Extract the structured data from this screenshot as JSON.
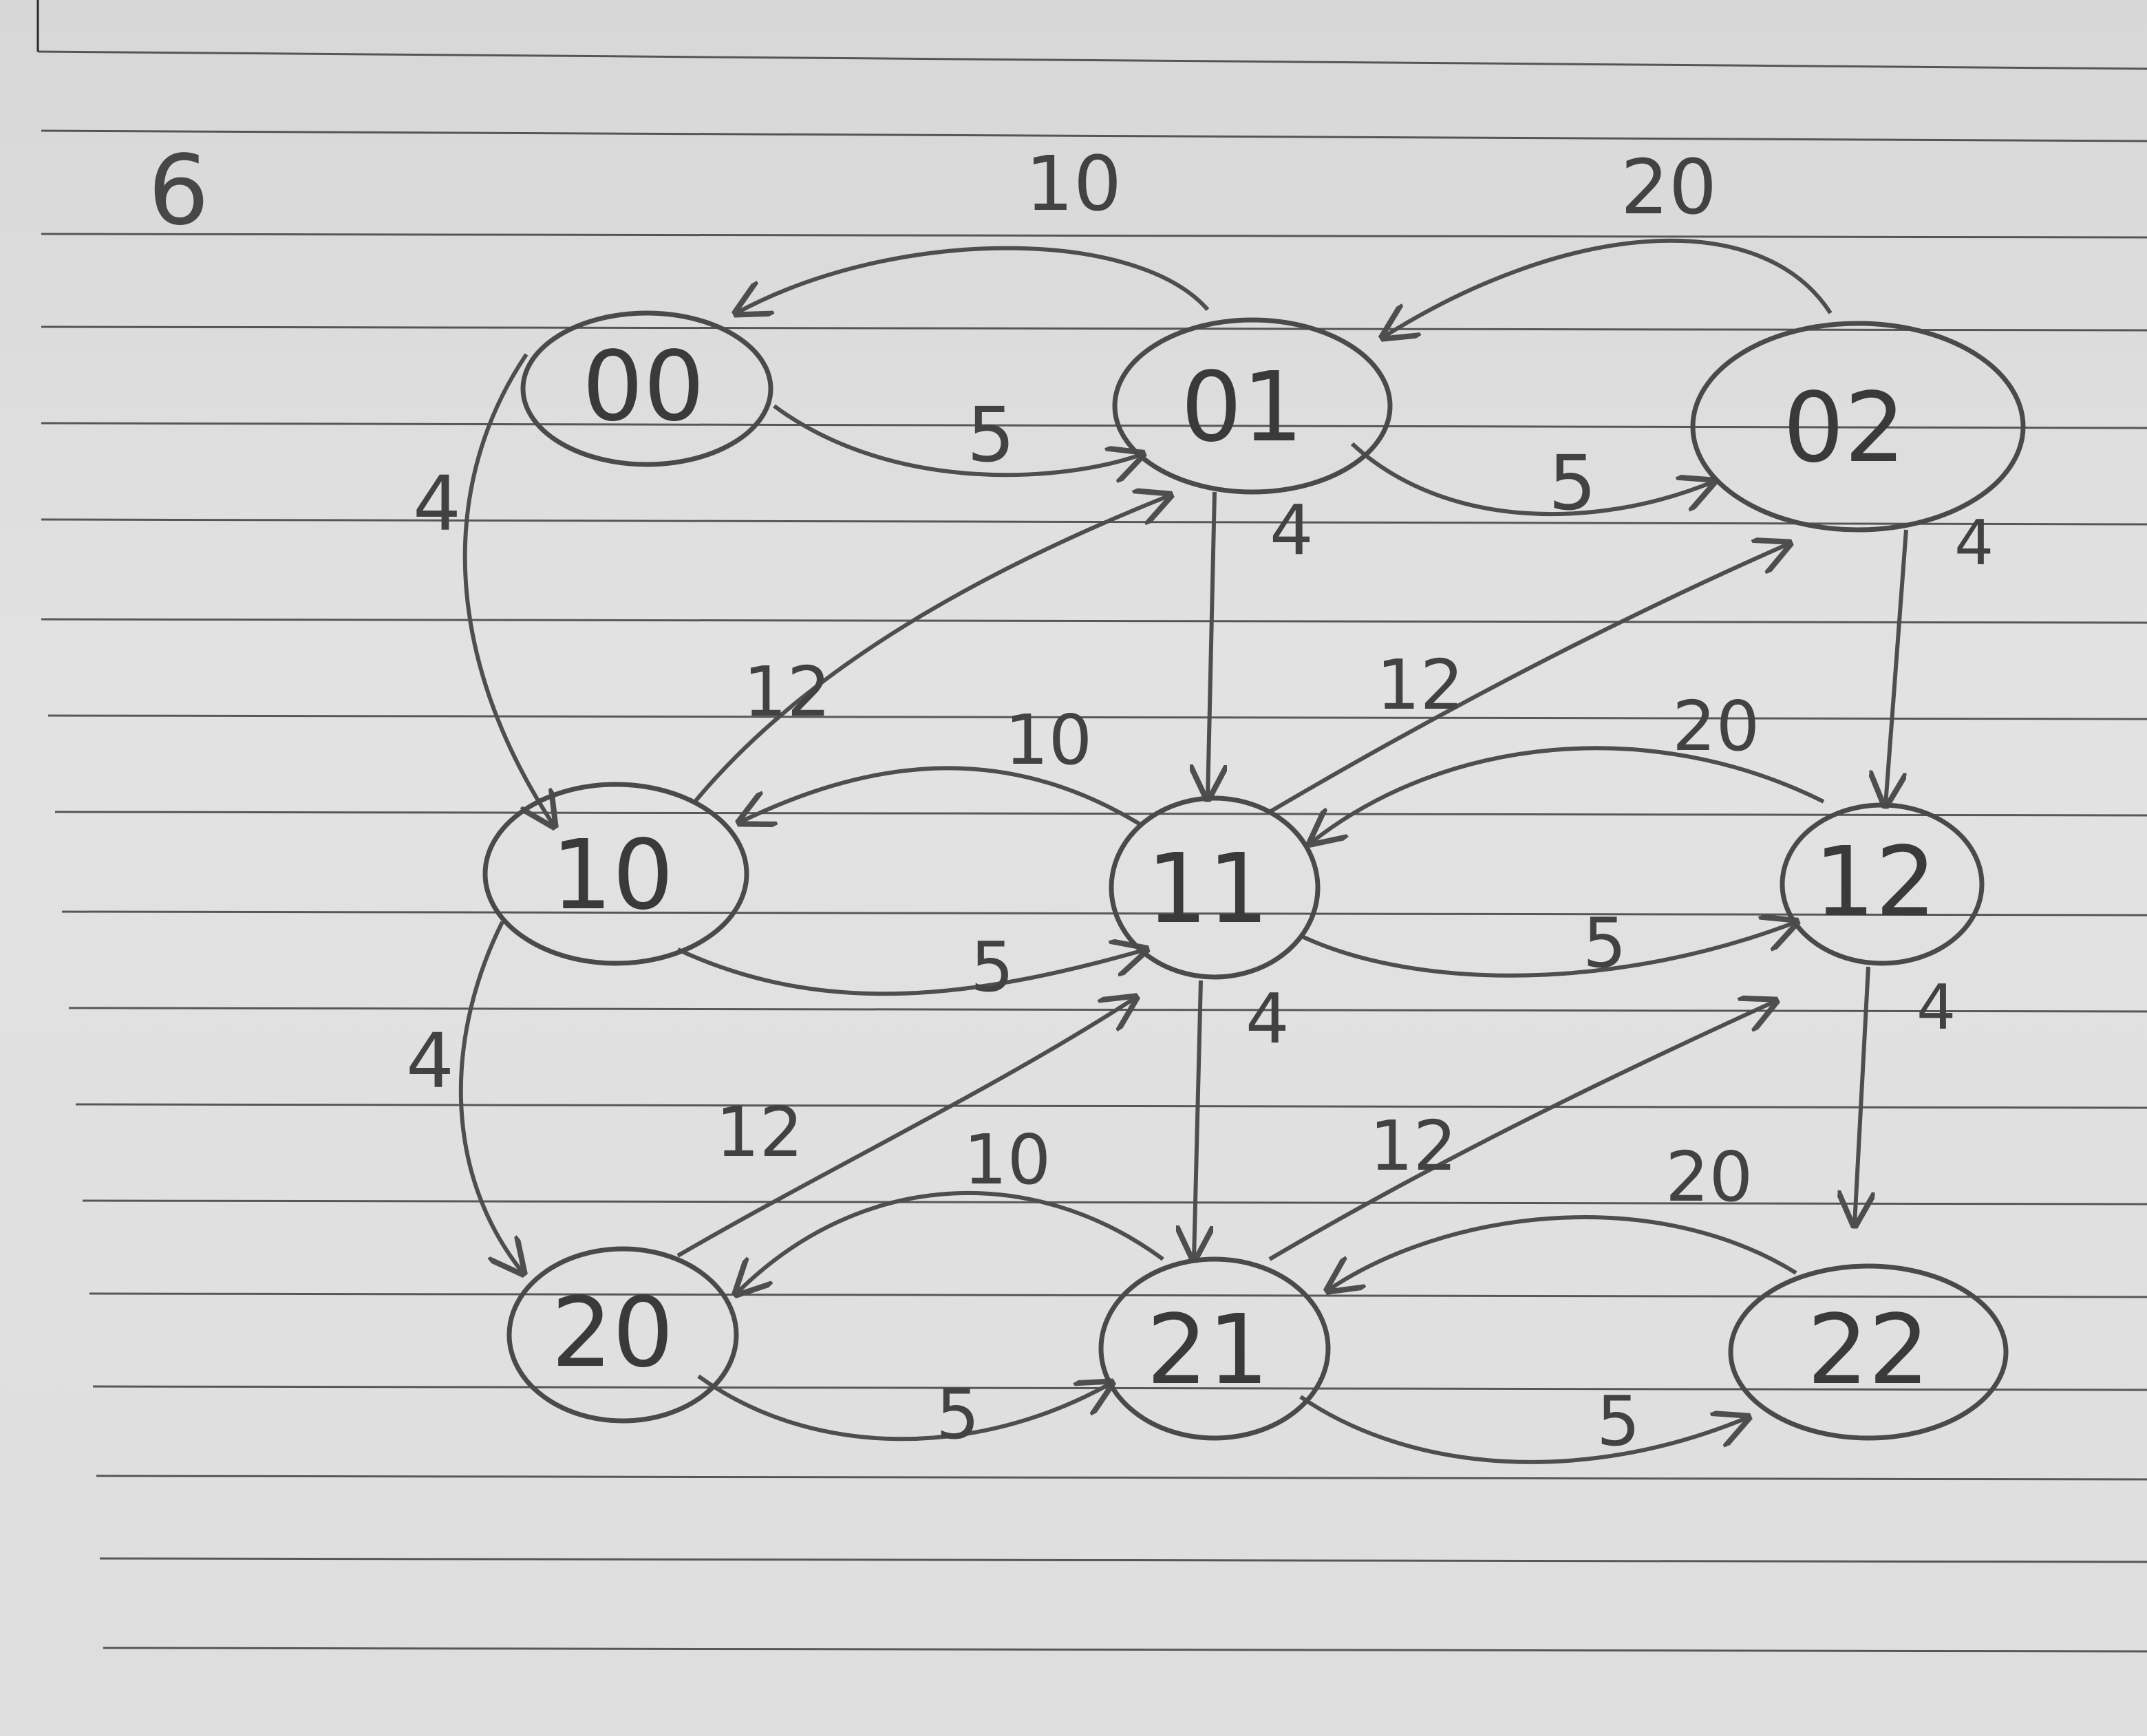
{
  "page_number": "6",
  "nodes": [
    {
      "id": "00",
      "label": "00"
    },
    {
      "id": "01",
      "label": "01"
    },
    {
      "id": "02",
      "label": "02"
    },
    {
      "id": "10",
      "label": "10"
    },
    {
      "id": "11",
      "label": "11"
    },
    {
      "id": "12",
      "label": "12"
    },
    {
      "id": "20",
      "label": "20"
    },
    {
      "id": "21",
      "label": "21"
    },
    {
      "id": "22",
      "label": "22"
    }
  ],
  "edges": [
    {
      "from": "01",
      "to": "00",
      "label": "10"
    },
    {
      "from": "00",
      "to": "01",
      "label": "5"
    },
    {
      "from": "02",
      "to": "01",
      "label": "20"
    },
    {
      "from": "01",
      "to": "02",
      "label": "5"
    },
    {
      "from": "00",
      "to": "10",
      "label": "4"
    },
    {
      "from": "01",
      "to": "11",
      "label": "4"
    },
    {
      "from": "02",
      "to": "12",
      "label": "4"
    },
    {
      "from": "10",
      "to": "01",
      "label": "12"
    },
    {
      "from": "11",
      "to": "02",
      "label": "12"
    },
    {
      "from": "11",
      "to": "10",
      "label": "10"
    },
    {
      "from": "10",
      "to": "11",
      "label": "5"
    },
    {
      "from": "12",
      "to": "11",
      "label": "20"
    },
    {
      "from": "11",
      "to": "12",
      "label": "5"
    },
    {
      "from": "10",
      "to": "20",
      "label": "4"
    },
    {
      "from": "11",
      "to": "21",
      "label": "4"
    },
    {
      "from": "12",
      "to": "22",
      "label": "4"
    },
    {
      "from": "20",
      "to": "11",
      "label": "12"
    },
    {
      "from": "21",
      "to": "12",
      "label": "12"
    },
    {
      "from": "21",
      "to": "20",
      "label": "10"
    },
    {
      "from": "20",
      "to": "21",
      "label": "5"
    },
    {
      "from": "22",
      "to": "21",
      "label": "20"
    },
    {
      "from": "21",
      "to": "22",
      "label": "5"
    }
  ]
}
